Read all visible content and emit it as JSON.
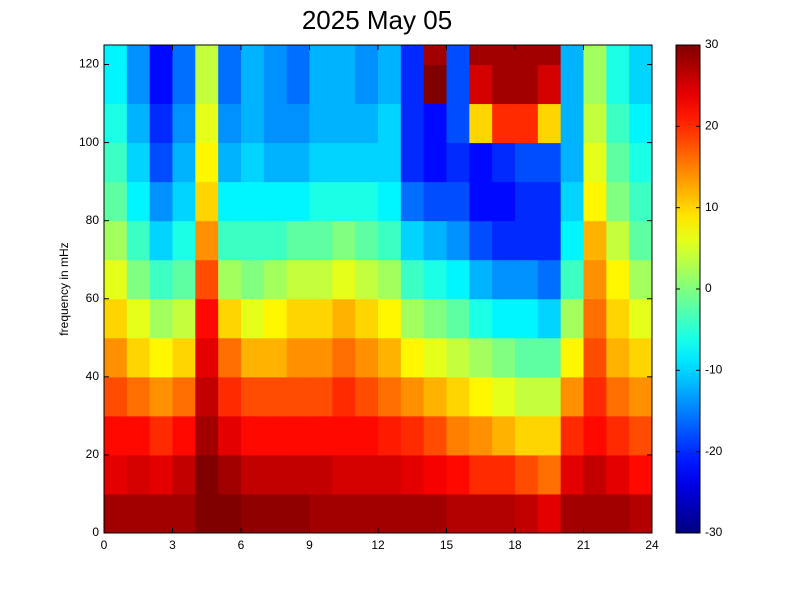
{
  "chart_data": {
    "type": "heatmap",
    "title": "2025 May 05",
    "y_label": "frequency in mHz",
    "x_bins": [
      0,
      1,
      2,
      3,
      4,
      5,
      6,
      7,
      8,
      9,
      10,
      11,
      12,
      13,
      14,
      15,
      16,
      17,
      18,
      19,
      20,
      21,
      22,
      23,
      24
    ],
    "y_bins": [
      0,
      10,
      20,
      30,
      40,
      50,
      60,
      70,
      80,
      90,
      100,
      110,
      120,
      125
    ],
    "xlim": [
      0,
      24
    ],
    "xticks": [
      0,
      3,
      6,
      9,
      12,
      15,
      18,
      21,
      24
    ],
    "ylim": [
      0,
      125
    ],
    "yticks": [
      0,
      20,
      40,
      60,
      80,
      100,
      120
    ],
    "colormap": "jet",
    "clim": [
      -30,
      30
    ],
    "colorbar_ticks": [
      -30,
      -20,
      -10,
      0,
      10,
      20,
      30
    ],
    "z": [
      [
        28,
        28,
        28,
        28,
        30,
        30,
        29,
        29,
        29,
        28,
        28,
        28,
        28,
        28,
        28,
        27,
        27,
        27,
        26,
        24,
        28,
        28,
        28,
        27
      ],
      [
        24,
        25,
        24,
        26,
        30,
        28,
        26,
        26,
        26,
        26,
        25,
        25,
        25,
        24,
        23,
        22,
        20,
        20,
        18,
        16,
        24,
        26,
        24,
        22
      ],
      [
        22,
        22,
        20,
        22,
        28,
        24,
        22,
        22,
        22,
        22,
        22,
        22,
        21,
        20,
        18,
        15,
        14,
        12,
        10,
        10,
        20,
        22,
        20,
        18
      ],
      [
        18,
        16,
        14,
        16,
        26,
        20,
        18,
        18,
        18,
        18,
        20,
        18,
        16,
        14,
        12,
        10,
        8,
        6,
        4,
        4,
        14,
        20,
        16,
        14
      ],
      [
        14,
        10,
        8,
        10,
        24,
        16,
        12,
        12,
        14,
        14,
        16,
        14,
        12,
        8,
        6,
        4,
        2,
        0,
        -2,
        -2,
        8,
        18,
        12,
        10
      ],
      [
        10,
        6,
        2,
        4,
        22,
        10,
        6,
        8,
        10,
        10,
        12,
        10,
        8,
        2,
        0,
        -2,
        -6,
        -8,
        -8,
        -10,
        2,
        16,
        10,
        6
      ],
      [
        6,
        0,
        -4,
        -2,
        18,
        2,
        0,
        2,
        4,
        4,
        6,
        4,
        2,
        -4,
        -6,
        -8,
        -12,
        -14,
        -14,
        -16,
        -4,
        14,
        8,
        2
      ],
      [
        2,
        -4,
        -10,
        -6,
        14,
        -4,
        -4,
        -4,
        -2,
        -2,
        0,
        -2,
        -4,
        -10,
        -12,
        -14,
        -18,
        -20,
        -20,
        -20,
        -8,
        12,
        4,
        -2
      ],
      [
        -2,
        -8,
        -14,
        -10,
        10,
        -8,
        -8,
        -8,
        -8,
        -6,
        -6,
        -6,
        -8,
        -16,
        -18,
        -18,
        -22,
        -22,
        -20,
        -20,
        -10,
        8,
        0,
        -4
      ],
      [
        -4,
        -10,
        -18,
        -12,
        8,
        -12,
        -10,
        -12,
        -12,
        -10,
        -10,
        -10,
        -10,
        -20,
        -22,
        -20,
        -22,
        -20,
        -18,
        -18,
        -12,
        6,
        -2,
        -6
      ],
      [
        -6,
        -12,
        -20,
        -14,
        6,
        -14,
        -12,
        -14,
        -14,
        -12,
        -12,
        -12,
        -10,
        -20,
        -22,
        -18,
        10,
        20,
        20,
        10,
        -12,
        4,
        -4,
        -8
      ],
      [
        -8,
        -14,
        -22,
        -16,
        4,
        -16,
        -12,
        -14,
        -16,
        -12,
        -12,
        -14,
        -12,
        -20,
        30,
        -18,
        25,
        28,
        28,
        25,
        -12,
        2,
        -6,
        -10
      ],
      [
        -8,
        -14,
        -22,
        -16,
        4,
        -16,
        -12,
        -14,
        -16,
        -12,
        -12,
        -14,
        -12,
        -20,
        28,
        -18,
        28,
        28,
        28,
        28,
        -12,
        2,
        -6,
        -10
      ]
    ]
  }
}
